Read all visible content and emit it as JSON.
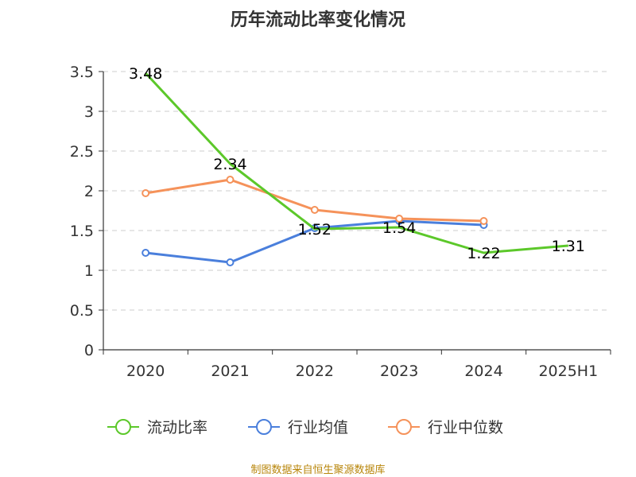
{
  "chart_data": {
    "type": "line",
    "title": "历年流动比率变化情况",
    "categories": [
      "2020",
      "2021",
      "2022",
      "2023",
      "2024",
      "2025H1"
    ],
    "ylim": [
      0,
      3.5
    ],
    "yticks": [
      0,
      0.5,
      1,
      1.5,
      2,
      2.5,
      3,
      3.5
    ],
    "grid": true,
    "legend_position": "bottom",
    "series": [
      {
        "name": "流动比率",
        "color": "#5cc82a",
        "values": [
          3.48,
          2.34,
          1.52,
          1.54,
          1.22,
          1.31
        ],
        "show_labels": true,
        "show_markers": false
      },
      {
        "name": "行业均值",
        "color": "#4a7fdc",
        "values": [
          1.22,
          1.1,
          1.53,
          1.62,
          1.57,
          null
        ],
        "show_labels": false,
        "show_markers": true
      },
      {
        "name": "行业中位数",
        "color": "#f5925a",
        "values": [
          1.97,
          2.14,
          1.76,
          1.65,
          1.62,
          null
        ],
        "show_labels": false,
        "show_markers": true
      }
    ],
    "source": "制图数据来自恒生聚源数据库"
  }
}
